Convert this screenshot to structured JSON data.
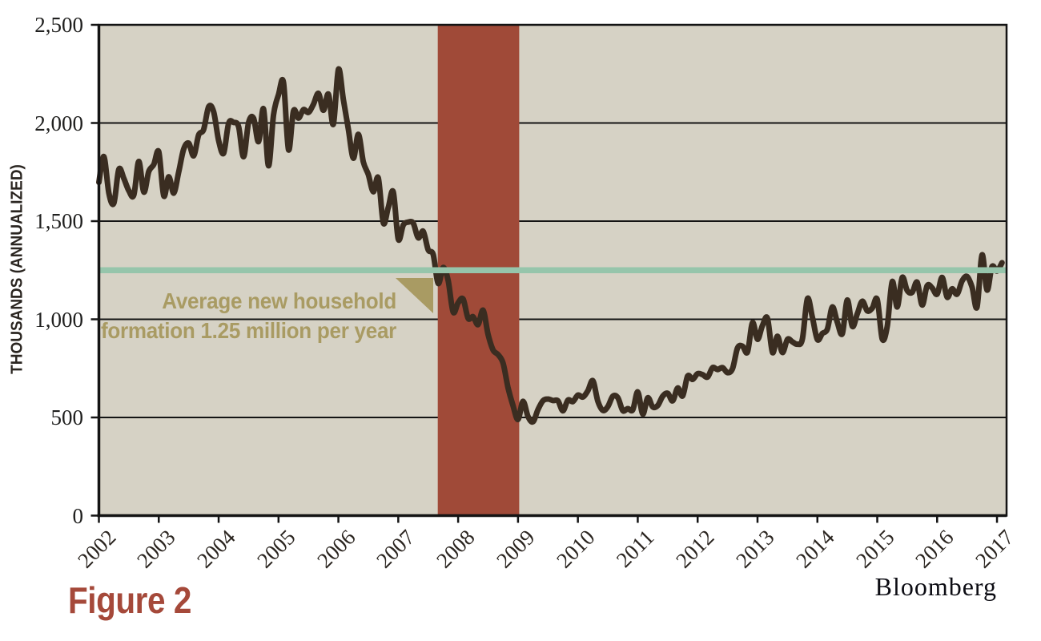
{
  "figure_label": "Figure 2",
  "source_label": "Bloomberg",
  "colors": {
    "plot_background": "#d6d2c5",
    "grid_line": "#141414",
    "series_line": "#3a2d21",
    "recession_band": "#a04a38",
    "reference_line": "#96c5ab",
    "annotation_text": "#a99b63",
    "figure_label_text": "#a5493a",
    "tick_text": "#20201f"
  },
  "chart_data": {
    "type": "line",
    "title": "",
    "ylabel": "THOUSANDS (ANNUALIZED)",
    "xlabel": "",
    "ylim": [
      0,
      2500
    ],
    "grid": "horizontal",
    "legend": "none",
    "yticks": {
      "values": [
        0,
        500,
        1000,
        1500,
        2000,
        2500
      ],
      "labels": [
        "0",
        "500",
        "1,000",
        "1,500",
        "2,000",
        "2,500"
      ]
    },
    "xticks": {
      "years": [
        2002,
        2003,
        2004,
        2005,
        2006,
        2007,
        2008,
        2009,
        2010,
        2011,
        2012,
        2013,
        2014,
        2015,
        2016,
        2017
      ]
    },
    "series": {
      "x_start_year": 2002,
      "x_step_months": 1,
      "values": [
        1698,
        1829,
        1642,
        1592,
        1764,
        1717,
        1655,
        1633,
        1804,
        1648,
        1753,
        1788,
        1853,
        1629,
        1726,
        1643,
        1751,
        1867,
        1897,
        1833,
        1939,
        1967,
        2083,
        2057,
        1911,
        1846,
        1998,
        2003,
        1981,
        1828,
        2002,
        2024,
        1905,
        2072,
        1782,
        2042,
        2144,
        2207,
        1864,
        2061,
        2025,
        2068,
        2054,
        2095,
        2151,
        2065,
        2147,
        1994,
        2273,
        2119,
        1969,
        1821,
        1942,
        1802,
        1737,
        1650,
        1720,
        1491,
        1570,
        1649,
        1409,
        1480,
        1495,
        1490,
        1415,
        1448,
        1354,
        1330,
        1183,
        1264,
        1197,
        1037,
        1084,
        1103,
        1005,
        1013,
        973,
        1046,
        923,
        844,
        820,
        777,
        652,
        560,
        490,
        582,
        505,
        478,
        540,
        585,
        594,
        586,
        585,
        534,
        588,
        581,
        614,
        604,
        636,
        687,
        583,
        536,
        555,
        608,
        601,
        535,
        545,
        539,
        630,
        517,
        600,
        554,
        561,
        608,
        623,
        585,
        650,
        610,
        711,
        694,
        723,
        718,
        706,
        754,
        744,
        754,
        728,
        749,
        854,
        863,
        834,
        983,
        898,
        969,
        1005,
        831,
        914,
        831,
        898,
        885,
        873,
        899,
        1105,
        1010,
        897,
        928,
        950,
        1063,
        984,
        927,
        1098,
        964,
        1028,
        1092,
        1043,
        1057,
        1101,
        900,
        964,
        1192,
        1063,
        1213,
        1147,
        1137,
        1189,
        1073,
        1171,
        1160,
        1128,
        1213,
        1113,
        1155,
        1128,
        1195,
        1218,
        1164,
        1062,
        1328,
        1149,
        1268,
        1246,
        1288
      ]
    },
    "reference_line": {
      "value": 1250,
      "label": "Average new household formation 1.25 million per year"
    },
    "recession_band": {
      "from_year": 2007.66,
      "to_year": 2009.02
    },
    "annotation": {
      "line1": "Average new household",
      "line2": "formation 1.25 million per year"
    }
  }
}
